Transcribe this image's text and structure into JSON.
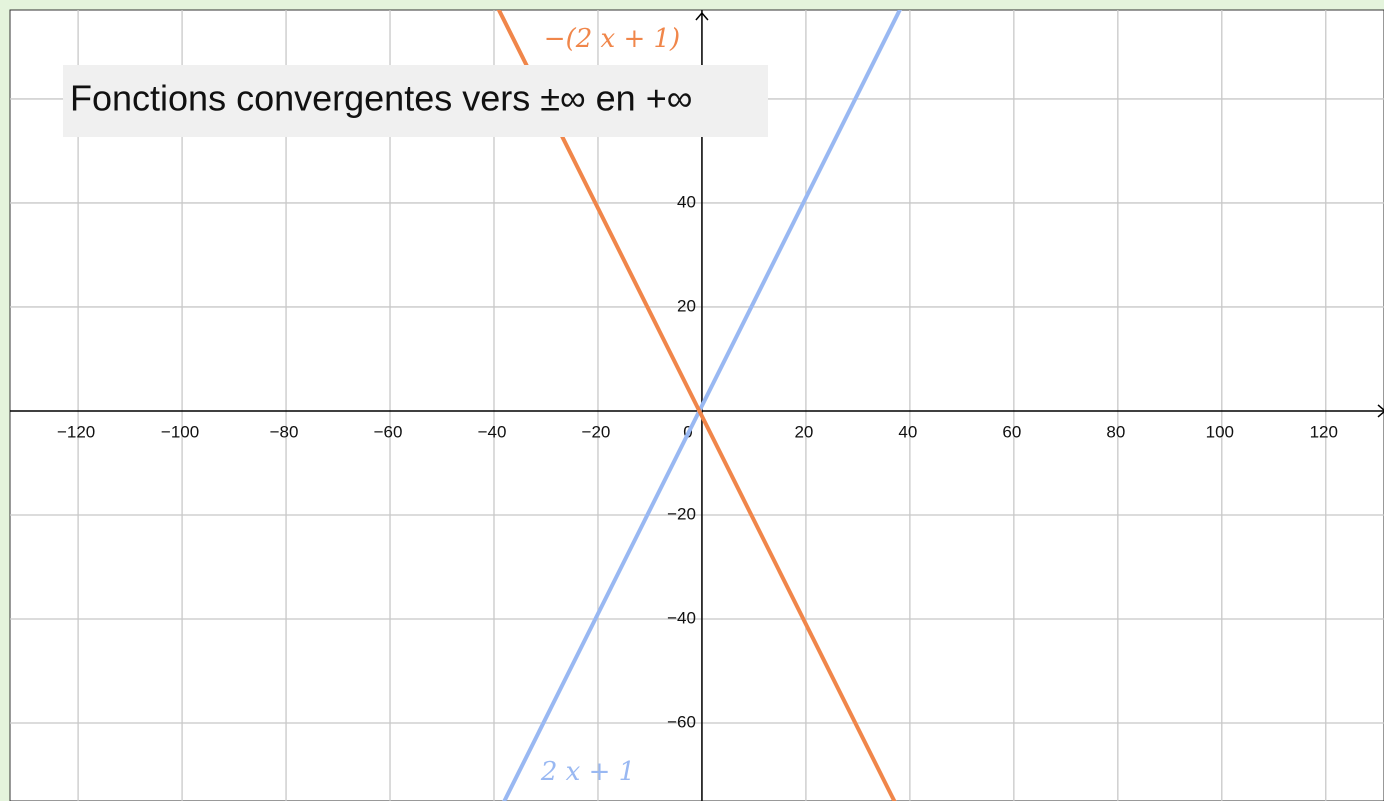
{
  "chart_data": {
    "type": "line",
    "title": "Fonctions convergentes vers ±∞ en +∞",
    "x": [
      -40,
      40
    ],
    "series": [
      {
        "name": "2 x + 1",
        "color": "#99b8f2",
        "values": [
          -79,
          81
        ]
      },
      {
        "name": "−(2 x + 1)",
        "color": "#f0864a",
        "values": [
          79,
          -81
        ]
      }
    ],
    "xlim": [
      -133.1,
      131.2
    ],
    "ylim": [
      -75,
      77.1
    ],
    "xticks": [
      {
        "value": -120,
        "label": "−120"
      },
      {
        "value": -100,
        "label": "−100"
      },
      {
        "value": -80,
        "label": "−80"
      },
      {
        "value": -60,
        "label": "−60"
      },
      {
        "value": -40,
        "label": "−40"
      },
      {
        "value": -20,
        "label": "−20"
      },
      0,
      20,
      40,
      60,
      80,
      100,
      120
    ],
    "yticks": [
      {
        "value": -60,
        "label": "−60"
      },
      {
        "value": -40,
        "label": "−40"
      },
      {
        "value": -20,
        "label": "−20"
      },
      20,
      40,
      60
    ],
    "grid": true
  }
}
